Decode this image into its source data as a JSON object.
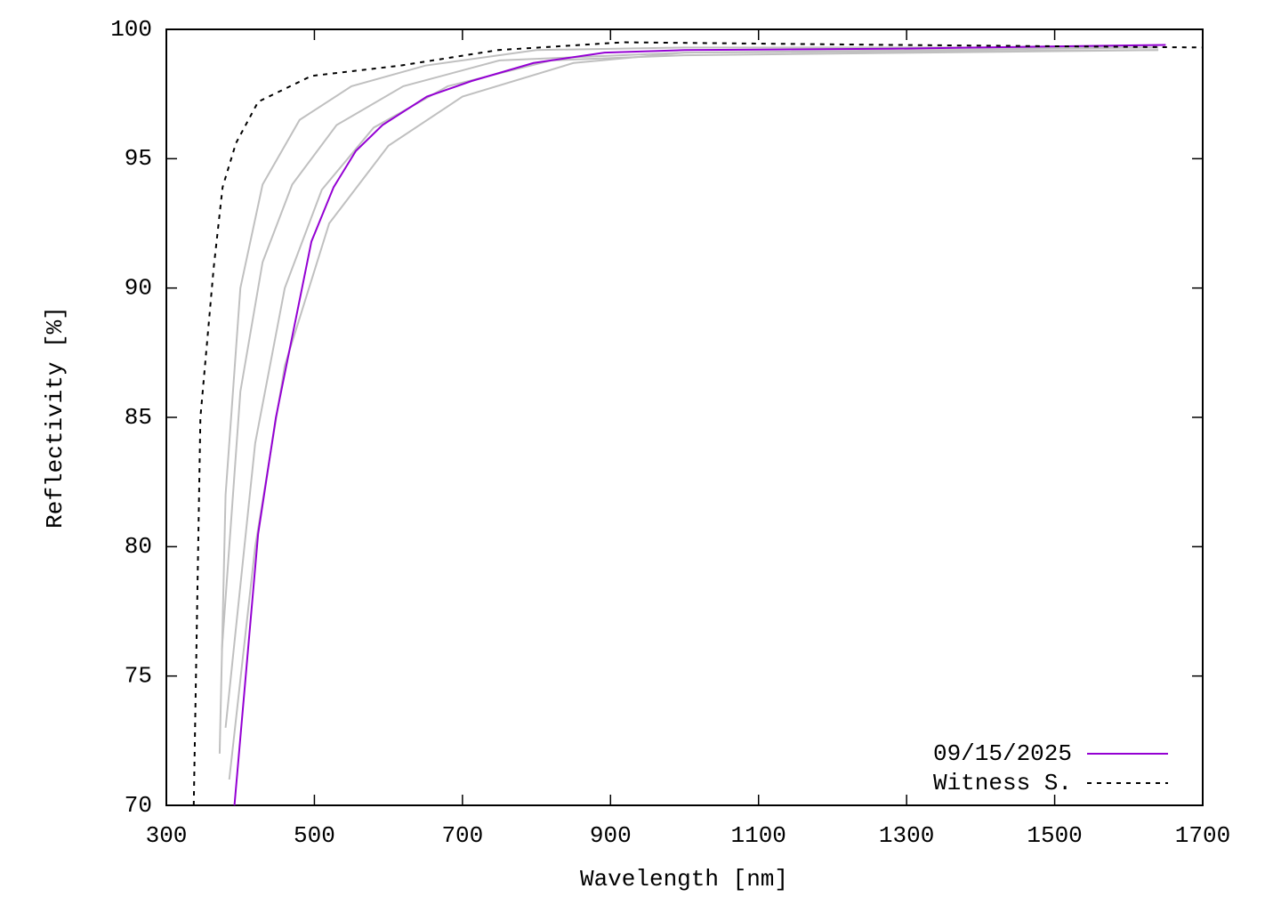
{
  "chart_data": {
    "type": "line",
    "xlabel": "Wavelength [nm]",
    "ylabel": "Reflectivity [%]",
    "xlim": [
      300,
      1700
    ],
    "ylim": [
      70,
      100
    ],
    "xticks": [
      300,
      500,
      700,
      900,
      1100,
      1300,
      1500,
      1700
    ],
    "yticks": [
      70,
      75,
      80,
      85,
      90,
      95,
      100
    ],
    "legend": "lower right",
    "series": [
      {
        "color": "#c0c0c0",
        "x": [
          372,
          380,
          400,
          430,
          480,
          550,
          650,
          800,
          1000,
          1640
        ],
        "values": [
          72,
          82,
          90,
          94,
          96.5,
          97.8,
          98.6,
          99.2,
          99.3,
          99.3
        ]
      },
      {
        "color": "#c0c0c0",
        "x": [
          375,
          400,
          430,
          470,
          530,
          620,
          750,
          1000,
          1640
        ],
        "values": [
          76,
          86,
          91,
          94,
          96.3,
          97.8,
          98.8,
          99.1,
          99.2
        ]
      },
      {
        "color": "#c0c0c0",
        "x": [
          380,
          420,
          460,
          510,
          580,
          680,
          820,
          1000,
          1640
        ],
        "values": [
          73,
          84,
          90,
          93.8,
          96.2,
          97.8,
          98.8,
          99,
          99.2
        ]
      },
      {
        "color": "#c0c0c0",
        "x": [
          385,
          420,
          460,
          520,
          600,
          700,
          850,
          1000,
          1640
        ],
        "values": [
          71,
          80,
          87,
          92.5,
          95.5,
          97.4,
          98.7,
          99.1,
          99.3
        ]
      },
      {
        "name": "09/15/2025",
        "color": "#9400d3",
        "dash": false,
        "x": [
          392,
          424,
          448,
          472,
          496,
          526,
          556,
          592,
          652,
          712,
          796,
          892,
          1000,
          1277,
          1650
        ],
        "values": [
          70,
          80.5,
          85,
          88.4,
          91.8,
          93.9,
          95.3,
          96.3,
          97.4,
          98,
          98.7,
          99.1,
          99.2,
          99.25,
          99.4
        ]
      },
      {
        "name": "Witness S.",
        "color": "#000000",
        "dash": true,
        "x": [
          337,
          346,
          364,
          376,
          394,
          424,
          496,
          616,
          748,
          917,
          1277,
          1700
        ],
        "values": [
          70,
          85,
          90.8,
          93.9,
          95.6,
          97.2,
          98.2,
          98.6,
          99.2,
          99.5,
          99.4,
          99.3
        ]
      }
    ]
  }
}
